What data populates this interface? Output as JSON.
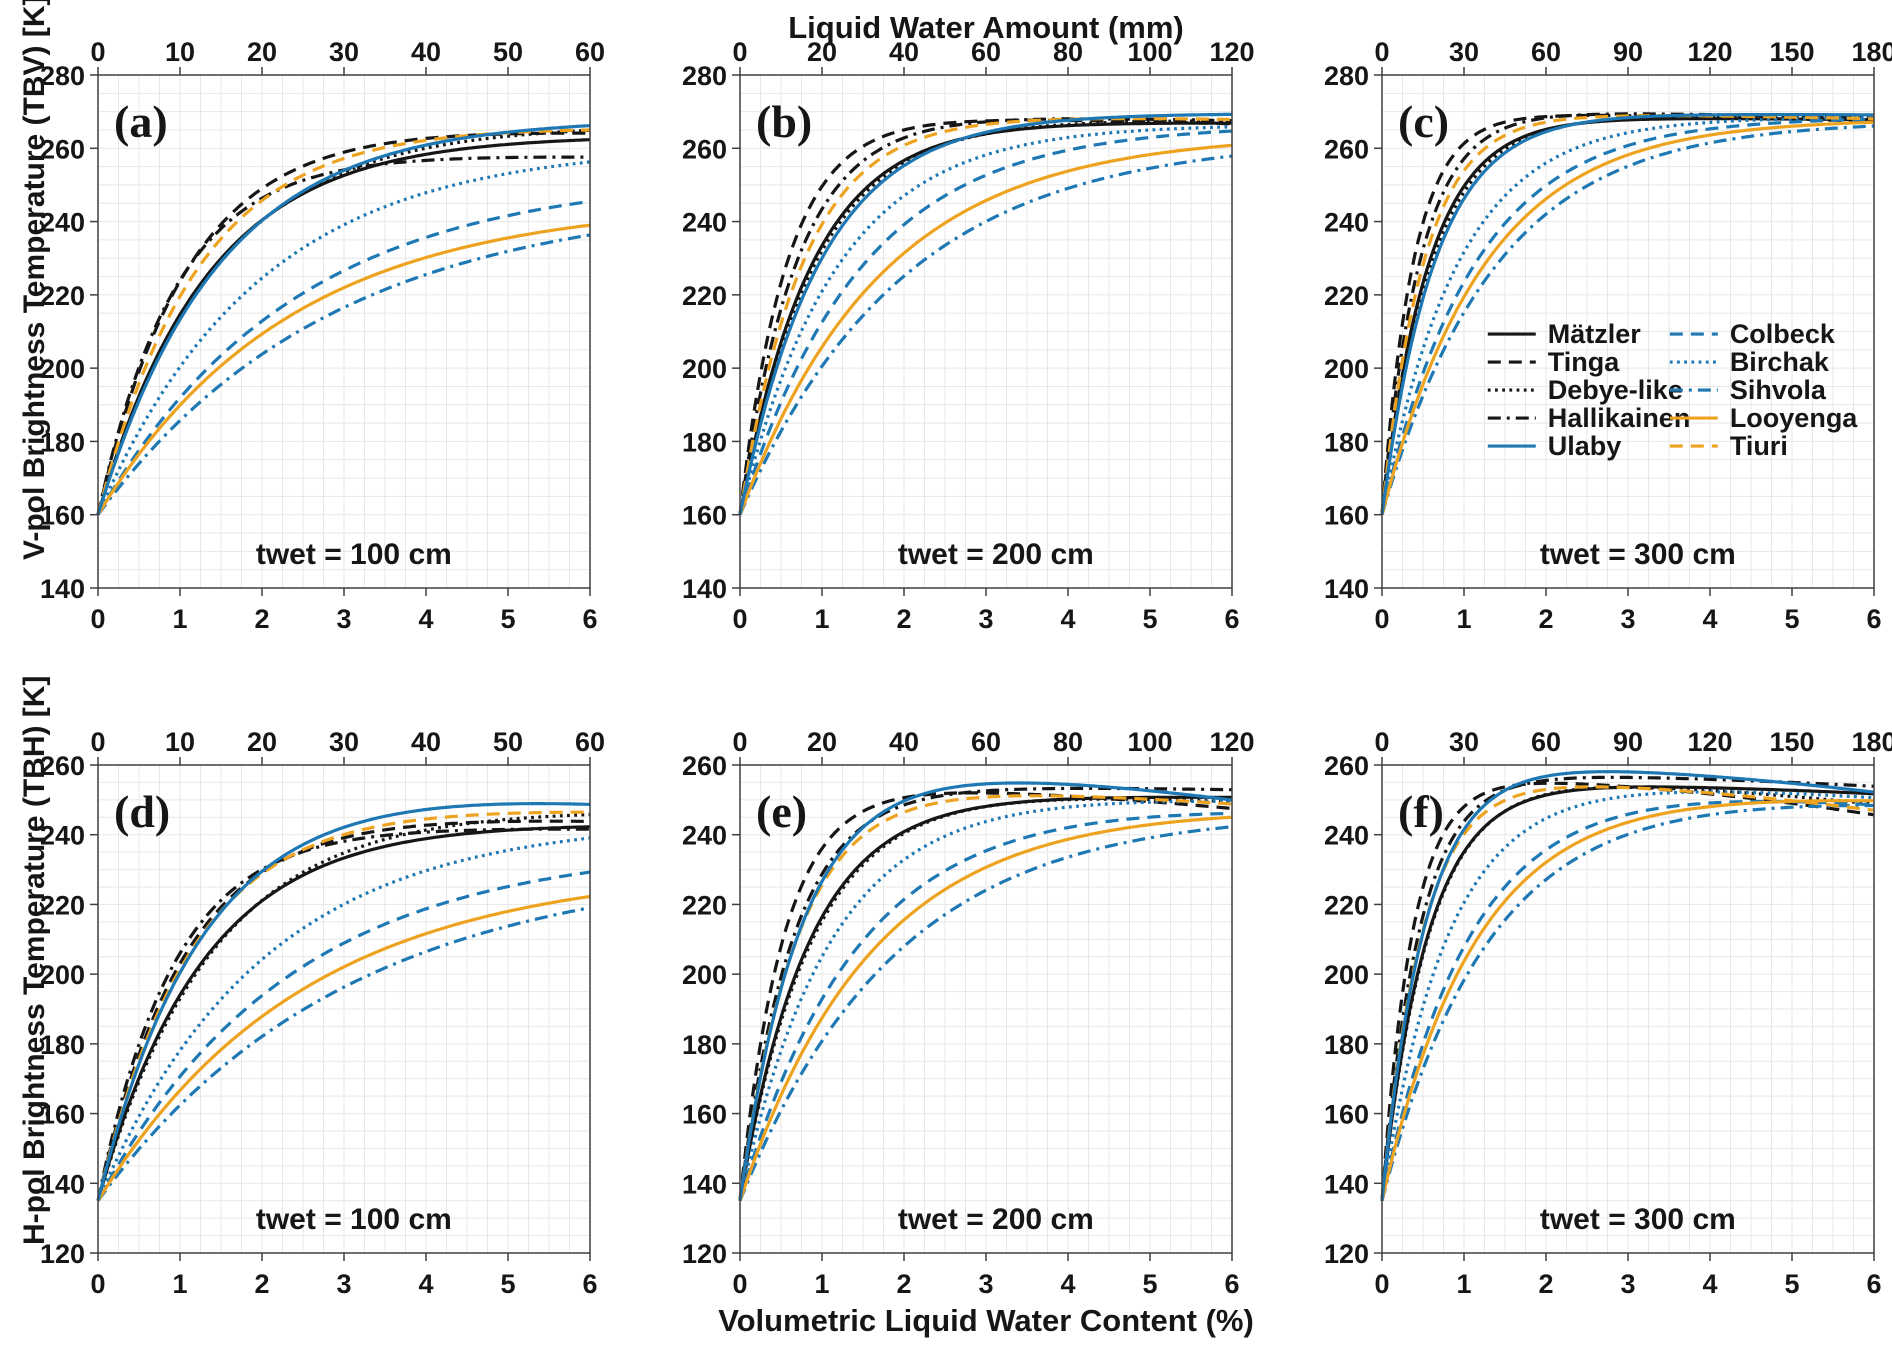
{
  "figure": {
    "top_axis_title": "Liquid Water Amount (mm)",
    "bottom_axis_title": "Volumetric Liquid Water Content (%)",
    "left_axis_title_top_row": "V-pol Brightness Temperature (TBV) [K]",
    "left_axis_title_bottom_row": "H-pol Brightness Temperature (TBH) [K]",
    "colors": {
      "black": "#161616",
      "blue": "#1e78b4",
      "orange": "#eea320",
      "grid": "#e7e7e7",
      "axis": "#3f3f3f",
      "background": "#ffffff"
    }
  },
  "legend": {
    "position": "inside panel (c), two columns, no frame",
    "items": [
      {
        "name": "Mätzler",
        "color": "black",
        "dash": "solid",
        "column": 1
      },
      {
        "name": "Tinga",
        "color": "black",
        "dash": "dashed",
        "column": 1
      },
      {
        "name": "Debye-like",
        "color": "black",
        "dash": "dotted",
        "column": 1
      },
      {
        "name": "Hallikainen",
        "color": "black",
        "dash": "dashdot",
        "column": 1
      },
      {
        "name": "Ulaby",
        "color": "blue",
        "dash": "solid",
        "column": 1
      },
      {
        "name": "Colbeck",
        "color": "blue",
        "dash": "dashed",
        "column": 2
      },
      {
        "name": "Birchak",
        "color": "blue",
        "dash": "dotted",
        "column": 2
      },
      {
        "name": "Sihvola",
        "color": "blue",
        "dash": "dashdot",
        "column": 2
      },
      {
        "name": "Looyenga",
        "color": "orange",
        "dash": "solid",
        "column": 2
      },
      {
        "name": "Tiuri",
        "color": "orange",
        "dash": "dashed",
        "column": 2
      }
    ]
  },
  "chart_data": {
    "type": "line",
    "note": "Each series follows y(x) = y_sat - (y_sat - y_start) * exp(-rate * x) - droop * x^2, with x = volumetric liquid water content in %. Values estimated from the plotted curves.",
    "x_model_range": [
      0,
      6
    ],
    "panels": [
      {
        "label": "(a)",
        "annotation": "twet = 100 cm",
        "row": "V-pol",
        "show_legend": false,
        "top_axis": {
          "min": 0,
          "max": 60,
          "ticks": [
            0,
            10,
            20,
            30,
            40,
            50,
            60
          ]
        },
        "x_axis": {
          "min": 0,
          "max": 6,
          "ticks": [
            0,
            1,
            2,
            3,
            4,
            5,
            6
          ]
        },
        "y_axis": {
          "min": 140,
          "max": 280,
          "ticks": [
            140,
            160,
            180,
            200,
            220,
            240,
            260,
            280
          ]
        },
        "series": [
          {
            "name": "Mätzler",
            "y_start": 160,
            "y_sat": 263.5,
            "rate": 0.75,
            "droop": 0
          },
          {
            "name": "Tinga",
            "y_start": 160,
            "y_sat": 266.0,
            "rate": 0.92,
            "droop": 0.04
          },
          {
            "name": "Debye-like",
            "y_start": 160,
            "y_sat": 266.5,
            "rate": 0.7,
            "droop": 0
          },
          {
            "name": "Hallikainen",
            "y_start": 160,
            "y_sat": 258.5,
            "rate": 1.05,
            "droop": 0.02
          },
          {
            "name": "Ulaby",
            "y_start": 160,
            "y_sat": 268.0,
            "rate": 0.68,
            "droop": 0
          },
          {
            "name": "Colbeck",
            "y_start": 160,
            "y_sat": 253.0,
            "rate": 0.42,
            "droop": 0
          },
          {
            "name": "Birchak",
            "y_start": 160,
            "y_sat": 261.0,
            "rate": 0.51,
            "droop": 0
          },
          {
            "name": "Sihvola",
            "y_start": 160,
            "y_sat": 247.0,
            "rate": 0.35,
            "droop": 0
          },
          {
            "name": "Looyenga",
            "y_start": 160,
            "y_sat": 245.5,
            "rate": 0.43,
            "droop": 0
          },
          {
            "name": "Tiuri",
            "y_start": 160,
            "y_sat": 266.5,
            "rate": 0.82,
            "droop": 0.02
          }
        ]
      },
      {
        "label": "(b)",
        "annotation": "twet = 200 cm",
        "row": "V-pol",
        "show_legend": false,
        "top_axis": {
          "min": 0,
          "max": 120,
          "ticks": [
            0,
            20,
            40,
            60,
            80,
            100,
            120
          ]
        },
        "x_axis": {
          "min": 0,
          "max": 6,
          "ticks": [
            0,
            1,
            2,
            3,
            4,
            5,
            6
          ]
        },
        "y_axis": {
          "min": 140,
          "max": 280,
          "ticks": [
            140,
            160,
            180,
            200,
            220,
            240,
            260,
            280
          ]
        },
        "series": [
          {
            "name": "Mätzler",
            "y_start": 160,
            "y_sat": 267.5,
            "rate": 1.15,
            "droop": 0.015
          },
          {
            "name": "Tinga",
            "y_start": 160,
            "y_sat": 268.5,
            "rate": 1.75,
            "droop": 0.05
          },
          {
            "name": "Debye-like",
            "y_start": 160,
            "y_sat": 268.0,
            "rate": 1.1,
            "droop": 0.01
          },
          {
            "name": "Hallikainen",
            "y_start": 160,
            "y_sat": 269.0,
            "rate": 1.45,
            "droop": 0.04
          },
          {
            "name": "Ulaby",
            "y_start": 160,
            "y_sat": 269.5,
            "rate": 1.02,
            "droop": 0
          },
          {
            "name": "Colbeck",
            "y_start": 160,
            "y_sat": 266.5,
            "rate": 0.68,
            "droop": 0
          },
          {
            "name": "Birchak",
            "y_start": 160,
            "y_sat": 266.5,
            "rate": 0.85,
            "droop": 0
          },
          {
            "name": "Sihvola",
            "y_start": 160,
            "y_sat": 263.0,
            "rate": 0.5,
            "droop": 0
          },
          {
            "name": "Looyenga",
            "y_start": 160,
            "y_sat": 264.0,
            "rate": 0.58,
            "droop": 0
          },
          {
            "name": "Tiuri",
            "y_start": 160,
            "y_sat": 269.0,
            "rate": 1.3,
            "droop": 0.03
          }
        ]
      },
      {
        "label": "(c)",
        "annotation": "twet = 300 cm",
        "row": "V-pol",
        "show_legend": true,
        "top_axis": {
          "min": 0,
          "max": 180,
          "ticks": [
            0,
            30,
            60,
            90,
            120,
            150,
            180
          ]
        },
        "x_axis": {
          "min": 0,
          "max": 6,
          "ticks": [
            0,
            1,
            2,
            3,
            4,
            5,
            6
          ]
        },
        "y_axis": {
          "min": 140,
          "max": 280,
          "ticks": [
            140,
            160,
            180,
            200,
            220,
            240,
            260,
            280
          ]
        },
        "series": [
          {
            "name": "Mätzler",
            "y_start": 160,
            "y_sat": 268.5,
            "rate": 1.75,
            "droop": 0.02
          },
          {
            "name": "Tinga",
            "y_start": 160,
            "y_sat": 269.5,
            "rate": 2.6,
            "droop": 0.06
          },
          {
            "name": "Debye-like",
            "y_start": 160,
            "y_sat": 269.0,
            "rate": 1.65,
            "droop": 0.015
          },
          {
            "name": "Hallikainen",
            "y_start": 160,
            "y_sat": 270.0,
            "rate": 2.15,
            "droop": 0.05
          },
          {
            "name": "Ulaby",
            "y_start": 160,
            "y_sat": 269.5,
            "rate": 1.55,
            "droop": 0.01
          },
          {
            "name": "Colbeck",
            "y_start": 160,
            "y_sat": 268.5,
            "rate": 0.88,
            "droop": 0
          },
          {
            "name": "Birchak",
            "y_start": 160,
            "y_sat": 268.5,
            "rate": 1.08,
            "droop": 0
          },
          {
            "name": "Sihvola",
            "y_start": 160,
            "y_sat": 267.5,
            "rate": 0.72,
            "droop": 0
          },
          {
            "name": "Looyenga",
            "y_start": 160,
            "y_sat": 268.0,
            "rate": 0.8,
            "droop": 0
          },
          {
            "name": "Tiuri",
            "y_start": 160,
            "y_sat": 269.5,
            "rate": 1.95,
            "droop": 0.04
          }
        ]
      },
      {
        "label": "(d)",
        "annotation": "twet = 100 cm",
        "row": "H-pol",
        "show_legend": false,
        "top_axis": {
          "min": 0,
          "max": 60,
          "ticks": [
            0,
            10,
            20,
            30,
            40,
            50,
            60
          ]
        },
        "x_axis": {
          "min": 0,
          "max": 6,
          "ticks": [
            0,
            1,
            2,
            3,
            4,
            5,
            6
          ]
        },
        "y_axis": {
          "min": 120,
          "max": 260,
          "ticks": [
            120,
            140,
            160,
            180,
            200,
            220,
            240,
            260
          ]
        },
        "series": [
          {
            "name": "Mätzler",
            "y_start": 135,
            "y_sat": 244.0,
            "rate": 0.78,
            "droop": 0.02
          },
          {
            "name": "Tinga",
            "y_start": 135,
            "y_sat": 246.0,
            "rate": 0.95,
            "droop": 0.05
          },
          {
            "name": "Debye-like",
            "y_start": 135,
            "y_sat": 248.0,
            "rate": 0.72,
            "droop": 0.02
          },
          {
            "name": "Hallikainen",
            "y_start": 135,
            "y_sat": 242.5,
            "rate": 1.08,
            "droop": 0.02
          },
          {
            "name": "Ulaby",
            "y_start": 135,
            "y_sat": 254.0,
            "rate": 0.8,
            "droop": 0.12
          },
          {
            "name": "Colbeck",
            "y_start": 135,
            "y_sat": 237.0,
            "rate": 0.43,
            "droop": 0
          },
          {
            "name": "Birchak",
            "y_start": 135,
            "y_sat": 244.5,
            "rate": 0.5,
            "droop": 0
          },
          {
            "name": "Sihvola",
            "y_start": 135,
            "y_sat": 232.5,
            "rate": 0.33,
            "droop": 0
          },
          {
            "name": "Looyenga",
            "y_start": 135,
            "y_sat": 231.0,
            "rate": 0.4,
            "droop": 0
          },
          {
            "name": "Tiuri",
            "y_start": 135,
            "y_sat": 248.5,
            "rate": 0.88,
            "droop": 0.04
          }
        ]
      },
      {
        "label": "(e)",
        "annotation": "twet = 200 cm",
        "row": "H-pol",
        "show_legend": false,
        "top_axis": {
          "min": 0,
          "max": 120,
          "ticks": [
            0,
            20,
            40,
            60,
            80,
            100,
            120
          ]
        },
        "x_axis": {
          "min": 0,
          "max": 6,
          "ticks": [
            0,
            1,
            2,
            3,
            4,
            5,
            6
          ]
        },
        "y_axis": {
          "min": 120,
          "max": 260,
          "ticks": [
            120,
            140,
            160,
            180,
            200,
            220,
            240,
            260
          ]
        },
        "series": [
          {
            "name": "Mätzler",
            "y_start": 135,
            "y_sat": 251.5,
            "rate": 1.2,
            "droop": 0.02
          },
          {
            "name": "Tinga",
            "y_start": 135,
            "y_sat": 254.0,
            "rate": 1.9,
            "droop": 0.18
          },
          {
            "name": "Debye-like",
            "y_start": 135,
            "y_sat": 252.5,
            "rate": 1.15,
            "droop": 0.08
          },
          {
            "name": "Hallikainen",
            "y_start": 135,
            "y_sat": 254.0,
            "rate": 1.55,
            "droop": 0.03
          },
          {
            "name": "Ulaby",
            "y_start": 135,
            "y_sat": 259.0,
            "rate": 1.35,
            "droop": 0.25
          },
          {
            "name": "Colbeck",
            "y_start": 135,
            "y_sat": 250.0,
            "rate": 0.7,
            "droop": 0.06
          },
          {
            "name": "Birchak",
            "y_start": 135,
            "y_sat": 251.5,
            "rate": 0.92,
            "droop": 0.04
          },
          {
            "name": "Sihvola",
            "y_start": 135,
            "y_sat": 248.0,
            "rate": 0.52,
            "droop": 0.02
          },
          {
            "name": "Looyenga",
            "y_start": 135,
            "y_sat": 248.5,
            "rate": 0.62,
            "droop": 0.02
          },
          {
            "name": "Tiuri",
            "y_start": 135,
            "y_sat": 253.5,
            "rate": 1.45,
            "droop": 0.13
          }
        ]
      },
      {
        "label": "(f)",
        "annotation": "twet = 300 cm",
        "row": "H-pol",
        "show_legend": false,
        "top_axis": {
          "min": 0,
          "max": 180,
          "ticks": [
            0,
            30,
            60,
            90,
            120,
            150,
            180
          ]
        },
        "x_axis": {
          "min": 0,
          "max": 6,
          "ticks": [
            0,
            1,
            2,
            3,
            4,
            5,
            6
          ]
        },
        "y_axis": {
          "min": 120,
          "max": 260,
          "ticks": [
            120,
            140,
            160,
            180,
            200,
            220,
            240,
            260
          ]
        },
        "series": [
          {
            "name": "Mätzler",
            "y_start": 135,
            "y_sat": 255.0,
            "rate": 1.8,
            "droop": 0.09
          },
          {
            "name": "Tinga",
            "y_start": 135,
            "y_sat": 256.5,
            "rate": 2.7,
            "droop": 0.3
          },
          {
            "name": "Debye-like",
            "y_start": 135,
            "y_sat": 256.0,
            "rate": 1.75,
            "droop": 0.2
          },
          {
            "name": "Hallikainen",
            "y_start": 135,
            "y_sat": 257.5,
            "rate": 2.2,
            "droop": 0.1
          },
          {
            "name": "Ulaby",
            "y_start": 135,
            "y_sat": 260.5,
            "rate": 1.9,
            "droop": 0.23
          },
          {
            "name": "Colbeck",
            "y_start": 135,
            "y_sat": 254.0,
            "rate": 0.95,
            "droop": 0.14
          },
          {
            "name": "Birchak",
            "y_start": 135,
            "y_sat": 255.0,
            "rate": 1.25,
            "droop": 0.12
          },
          {
            "name": "Sihvola",
            "y_start": 135,
            "y_sat": 252.0,
            "rate": 0.78,
            "droop": 0.07
          },
          {
            "name": "Looyenga",
            "y_start": 135,
            "y_sat": 252.5,
            "rate": 0.88,
            "droop": 0.06
          },
          {
            "name": "Tiuri",
            "y_start": 135,
            "y_sat": 256.0,
            "rate": 2.05,
            "droop": 0.25
          }
        ]
      }
    ]
  }
}
